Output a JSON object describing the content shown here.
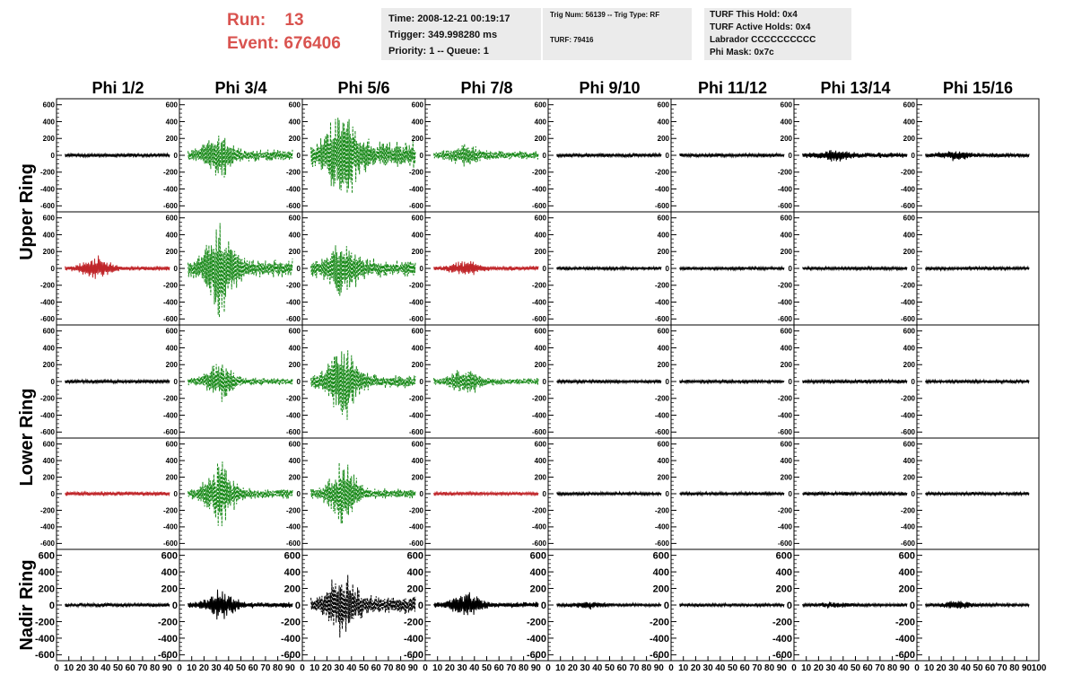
{
  "header": {
    "run_label": "Run:",
    "run_value": "13",
    "event_label": "Event:",
    "event_value": "676406",
    "time_line": "Time: 2008-12-21 00:19:17",
    "trigger_line": "Trigger: 349.998280 ms",
    "priority_line": "Priority: 1 -- Queue: 1",
    "trig_line": "Trig Num: 56139 -- Trig Type: RF",
    "turf_line": "TURF: 79416",
    "turf_hold_line": "TURF This Hold: 0x4",
    "turf_active_line": "TURF Active Holds: 0x4",
    "labrador_line": "Labrador CCCCCCCCCC",
    "phi_mask_line": "Phi Mask: 0x7c"
  },
  "colors": {
    "normal": "#000000",
    "triggered": "#1a8a1a",
    "masked": "#c0262a",
    "accent_text": "#d9534f",
    "box_bg": "#ebebeb"
  },
  "chart_data": {
    "type": "line",
    "columns": [
      "Phi 1/2",
      "Phi 3/4",
      "Phi 5/6",
      "Phi 7/8",
      "Phi 9/10",
      "Phi 11/12",
      "Phi 13/14",
      "Phi 15/16"
    ],
    "rows": [
      "Upper Ring",
      "Lower Ring",
      "Nadir Ring"
    ],
    "ylim": [
      -650,
      650
    ],
    "xlim": [
      0,
      100
    ],
    "yticks": [
      -600,
      -400,
      -200,
      0,
      200,
      400,
      600
    ],
    "xtick_labels": [
      "0",
      "10",
      "20",
      "30",
      "40",
      "50",
      "60",
      "70",
      "80",
      "90",
      "100"
    ],
    "panels": [
      [
        {
          "style": "normal",
          "amplitude": 25,
          "burst": 0
        },
        {
          "style": "triggered",
          "amplitude": 80,
          "burst": 250
        },
        {
          "style": "triggered",
          "amplitude": 180,
          "burst": 600
        },
        {
          "style": "triggered",
          "amplitude": 60,
          "burst": 120
        },
        {
          "style": "normal",
          "amplitude": 25,
          "burst": 0
        },
        {
          "style": "normal",
          "amplitude": 25,
          "burst": 0
        },
        {
          "style": "normal",
          "amplitude": 35,
          "burst": 60
        },
        {
          "style": "normal",
          "amplitude": 30,
          "burst": 50
        }
      ],
      [
        {
          "style": "masked",
          "amplitude": 30,
          "burst": 150
        },
        {
          "style": "triggered",
          "amplitude": 120,
          "burst": 550
        },
        {
          "style": "triggered",
          "amplitude": 120,
          "burst": 300
        },
        {
          "style": "masked",
          "amplitude": 30,
          "burst": 80
        },
        {
          "style": "normal",
          "amplitude": 22,
          "burst": 0
        },
        {
          "style": "normal",
          "amplitude": 22,
          "burst": 0
        },
        {
          "style": "normal",
          "amplitude": 22,
          "burst": 0
        },
        {
          "style": "normal",
          "amplitude": 22,
          "burst": 0
        }
      ],
      [
        {
          "style": "normal",
          "amplitude": 25,
          "burst": 0
        },
        {
          "style": "triggered",
          "amplitude": 50,
          "burst": 230
        },
        {
          "style": "triggered",
          "amplitude": 90,
          "burst": 500
        },
        {
          "style": "triggered",
          "amplitude": 50,
          "burst": 170
        },
        {
          "style": "normal",
          "amplitude": 22,
          "burst": 0
        },
        {
          "style": "normal",
          "amplitude": 22,
          "burst": 0
        },
        {
          "style": "normal",
          "amplitude": 25,
          "burst": 0
        },
        {
          "style": "normal",
          "amplitude": 22,
          "burst": 0
        }
      ],
      [
        {
          "style": "masked",
          "amplitude": 30,
          "burst": 0
        },
        {
          "style": "triggered",
          "amplitude": 70,
          "burst": 400
        },
        {
          "style": "triggered",
          "amplitude": 70,
          "burst": 400
        },
        {
          "style": "masked",
          "amplitude": 25,
          "burst": 0
        },
        {
          "style": "normal",
          "amplitude": 22,
          "burst": 0
        },
        {
          "style": "normal",
          "amplitude": 22,
          "burst": 0
        },
        {
          "style": "normal",
          "amplitude": 25,
          "burst": 0
        },
        {
          "style": "normal",
          "amplitude": 22,
          "burst": 0
        }
      ],
      [
        {
          "style": "normal",
          "amplitude": 25,
          "burst": 0
        },
        {
          "style": "normal",
          "amplitude": 40,
          "burst": 200
        },
        {
          "style": "normal",
          "amplitude": 120,
          "burst": 400
        },
        {
          "style": "normal",
          "amplitude": 40,
          "burst": 150
        },
        {
          "style": "normal",
          "amplitude": 22,
          "burst": 40
        },
        {
          "style": "normal",
          "amplitude": 22,
          "burst": 0
        },
        {
          "style": "normal",
          "amplitude": 22,
          "burst": 30
        },
        {
          "style": "normal",
          "amplitude": 22,
          "burst": 50
        }
      ]
    ]
  }
}
